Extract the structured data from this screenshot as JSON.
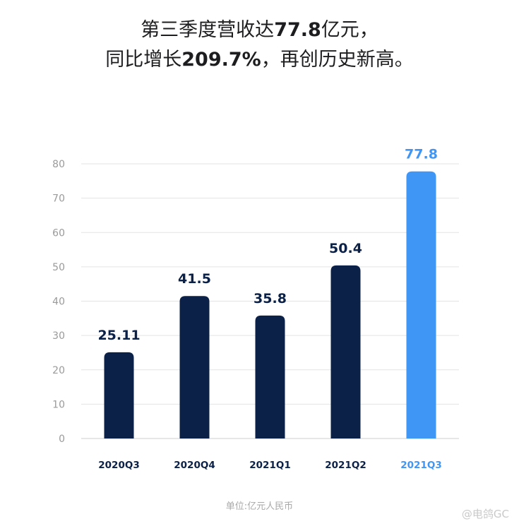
{
  "headline": {
    "line1_pre": "第三季度营收达",
    "line1_num": "77.8",
    "line1_post": "亿元，",
    "line2_pre": "同比增长",
    "line2_num": "209.7%",
    "line2_post": "，再创历史新高。"
  },
  "chart_data": {
    "type": "bar",
    "categories": [
      "2020Q3",
      "2020Q4",
      "2021Q1",
      "2021Q2",
      "2021Q3"
    ],
    "values": [
      25.11,
      41.5,
      35.8,
      50.4,
      77.8
    ],
    "value_labels": [
      "25.11",
      "41.5",
      "35.8",
      "50.4",
      "77.8"
    ],
    "ylim": [
      0,
      80
    ],
    "yticks": [
      0,
      10,
      20,
      30,
      40,
      50,
      60,
      70,
      80
    ],
    "grid": true,
    "highlight_index": 4,
    "colors": {
      "bar": "#0b2147",
      "highlight": "#4096f5",
      "grid": "#e3e3e3",
      "tick_label": "#9a9a9a"
    }
  },
  "unit_note": "单位:亿元人民币",
  "watermark": "@电鸽GC"
}
